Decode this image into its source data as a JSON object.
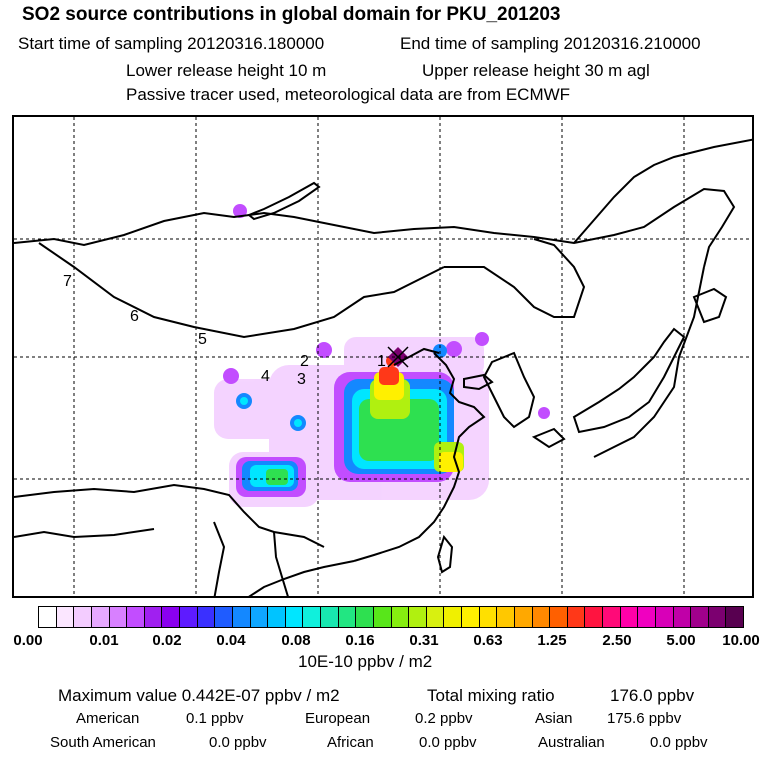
{
  "header": {
    "title": "SO2 source contributions in global domain for PKU_201203",
    "start_label": "Start time of sampling 20120316.180000",
    "end_label": "End time of sampling 20120316.210000",
    "lower_release": "Lower release height   10 m",
    "upper_release": "Upper release height   30 m    agl",
    "note": "Passive tracer used, meteorological data are from ECMWF"
  },
  "map": {
    "trajectory_labels": [
      "1",
      "2",
      "3",
      "4",
      "5",
      "6",
      "7"
    ]
  },
  "colorbar": {
    "ticks": [
      "0.00",
      "0.01",
      "0.02",
      "0.04",
      "0.08",
      "0.16",
      "0.31",
      "0.63",
      "1.25",
      "2.50",
      "5.00",
      "10.00"
    ],
    "unit": "10E-10 ppbv / m2",
    "colors": [
      "#ffffff",
      "#fbe6ff",
      "#f3ccff",
      "#e6a8ff",
      "#d880ff",
      "#c24dff",
      "#a020f0",
      "#8a00f0",
      "#5e1bff",
      "#3a30ff",
      "#1f5cff",
      "#1488ff",
      "#0fa6ff",
      "#00c4ff",
      "#00e6ff",
      "#10f0dc",
      "#18e8b0",
      "#22e682",
      "#2ee050",
      "#58e61a",
      "#86ee10",
      "#b0f010",
      "#d8f010",
      "#f0f000",
      "#fff000",
      "#ffe000",
      "#ffc800",
      "#ffa800",
      "#ff8800",
      "#ff6000",
      "#ff3818",
      "#ff1440",
      "#ff0a78",
      "#ff00a8",
      "#f000c0",
      "#d800b8",
      "#c000a8",
      "#a0008c",
      "#7c0070",
      "#580050"
    ]
  },
  "footer": {
    "max_label": "Maximum value  0.442E-07 ppbv / m2",
    "total_label": "Total mixing ratio",
    "total_value": "176.0 ppbv",
    "regions": [
      {
        "name": "American",
        "value": "0.1 ppbv"
      },
      {
        "name": "European",
        "value": "0.2 ppbv"
      },
      {
        "name": "Asian",
        "value": "175.6 ppbv"
      },
      {
        "name": "South American",
        "value": "0.0 ppbv"
      },
      {
        "name": "African",
        "value": "0.0 ppbv"
      },
      {
        "name": "Australian",
        "value": "0.0 ppbv"
      }
    ]
  }
}
